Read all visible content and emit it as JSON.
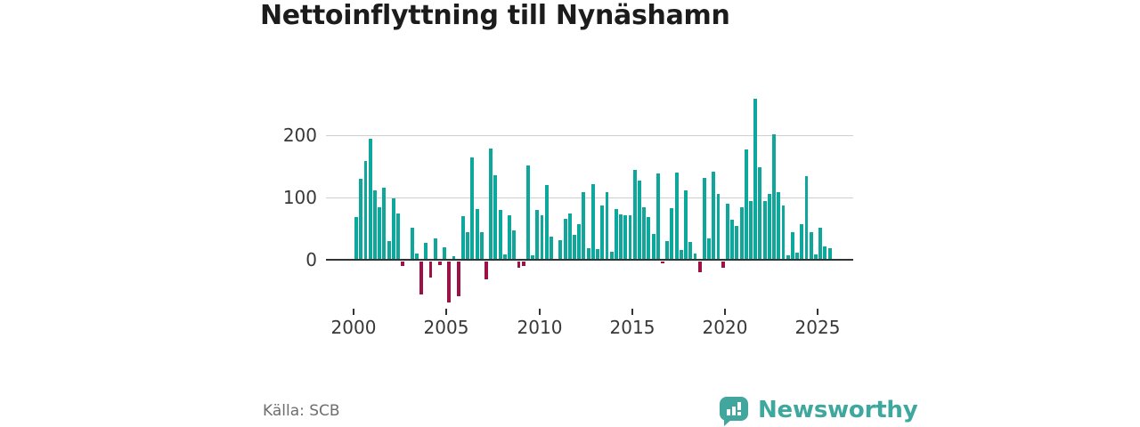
{
  "title": "Nettoinflyttning till Nynäshamn",
  "source": "Källa: SCB",
  "logo": {
    "text": "Newsworthy",
    "icon": "newsworthy-chart-bubble-icon"
  },
  "chart_data": {
    "type": "bar",
    "title": "Nettoinflyttning till Nynäshamn",
    "frequency": "quarterly",
    "x_start": "2000-Q1",
    "x_end": "2025-Q3",
    "yticks": [
      "200",
      "100",
      "0"
    ],
    "xticks": [
      "2000",
      "2005",
      "2010",
      "2015",
      "2020",
      "2025"
    ],
    "ylim": [
      -75,
      270
    ],
    "grid": "horizontal",
    "positive_color": "#0ea79b",
    "negative_color": "#9c1245",
    "series": [
      {
        "year": 2000,
        "quarters": [
          69,
          130,
          158,
          195
        ]
      },
      {
        "year": 2001,
        "quarters": [
          111,
          85,
          116,
          30
        ]
      },
      {
        "year": 2002,
        "quarters": [
          98,
          74,
          -8,
          2
        ]
      },
      {
        "year": 2003,
        "quarters": [
          52,
          10,
          -53,
          27
        ]
      },
      {
        "year": 2004,
        "quarters": [
          -26,
          34,
          -6,
          20
        ]
      },
      {
        "year": 2005,
        "quarters": [
          -67,
          6,
          -57,
          70
        ]
      },
      {
        "year": 2006,
        "quarters": [
          44,
          164,
          82,
          45
        ]
      },
      {
        "year": 2007,
        "quarters": [
          -29,
          179,
          136,
          80
        ]
      },
      {
        "year": 2008,
        "quarters": [
          9,
          71,
          47,
          -10
        ]
      },
      {
        "year": 2009,
        "quarters": [
          -8,
          151,
          7,
          80
        ]
      },
      {
        "year": 2010,
        "quarters": [
          71,
          120,
          37,
          2
        ]
      },
      {
        "year": 2011,
        "quarters": [
          31,
          66,
          75,
          40
        ]
      },
      {
        "year": 2012,
        "quarters": [
          57,
          108,
          19,
          122
        ]
      },
      {
        "year": 2013,
        "quarters": [
          17,
          87,
          109,
          13
        ]
      },
      {
        "year": 2014,
        "quarters": [
          82,
          73,
          72,
          72
        ]
      },
      {
        "year": 2015,
        "quarters": [
          145,
          127,
          84,
          68
        ]
      },
      {
        "year": 2016,
        "quarters": [
          41,
          139,
          -4,
          30
        ]
      },
      {
        "year": 2017,
        "quarters": [
          83,
          140,
          16,
          111
        ]
      },
      {
        "year": 2018,
        "quarters": [
          28,
          10,
          -18,
          131
        ]
      },
      {
        "year": 2019,
        "quarters": [
          34,
          142,
          106,
          -11
        ]
      },
      {
        "year": 2020,
        "quarters": [
          90,
          64,
          54,
          84
        ]
      },
      {
        "year": 2021,
        "quarters": [
          177,
          95,
          258,
          148
        ]
      },
      {
        "year": 2022,
        "quarters": [
          95,
          106,
          201,
          109
        ]
      },
      {
        "year": 2023,
        "quarters": [
          87,
          7,
          45,
          11
        ]
      },
      {
        "year": 2024,
        "quarters": [
          57,
          134,
          45,
          8
        ]
      },
      {
        "year": 2025,
        "quarters": [
          51,
          21,
          19
        ]
      }
    ]
  }
}
